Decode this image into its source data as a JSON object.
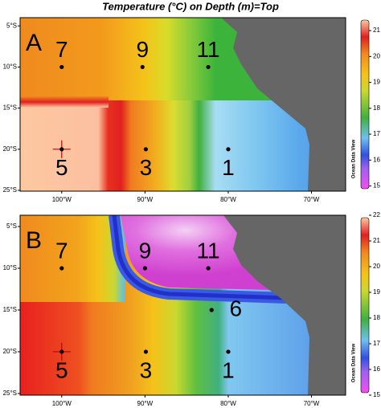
{
  "title": "Temperature (°C) on Depth (m)=Top",
  "watermark": "Ocean Data View",
  "xlim": [
    -105.0,
    -65.9
  ],
  "xticks": [
    {
      "value": -100,
      "label": "100°W"
    },
    {
      "value": -90,
      "label": "90°W"
    },
    {
      "value": -80,
      "label": "80°W"
    },
    {
      "value": -70,
      "label": "70°W"
    }
  ],
  "panels": [
    {
      "label": "A",
      "ylim": [
        -25.1,
        -4.0
      ],
      "yticks": [
        {
          "value": -5,
          "label": "5°S"
        },
        {
          "value": -10,
          "label": "10°S"
        },
        {
          "value": -15,
          "label": "15°S"
        },
        {
          "value": -20,
          "label": "20°S"
        },
        {
          "value": -25,
          "label": "25°S"
        }
      ],
      "colorbar": {
        "lim": [
          14.8,
          21.5
        ],
        "ticks": [
          15,
          16,
          17,
          18,
          19,
          20,
          21
        ]
      },
      "stations": [
        {
          "label": "7",
          "lon": -100,
          "lat": -10,
          "label_position": "above"
        },
        {
          "label": "9",
          "lon": -90.3,
          "lat": -10,
          "label_position": "above"
        },
        {
          "label": "11",
          "lon": -82.4,
          "lat": -10,
          "label_position": "above"
        },
        {
          "label": "5",
          "lon": -100,
          "lat": -20,
          "label_position": "below",
          "highlight": true
        },
        {
          "label": "3",
          "lon": -89.9,
          "lat": -20,
          "label_position": "below"
        },
        {
          "label": "1",
          "lon": -80,
          "lat": -20,
          "label_position": "below"
        }
      ]
    },
    {
      "label": "B",
      "ylim": [
        -25.2,
        -3.65
      ],
      "yticks": [
        {
          "value": -5,
          "label": "5°S"
        },
        {
          "value": -10,
          "label": "10°S"
        },
        {
          "value": -15,
          "label": "15°S"
        },
        {
          "value": -20,
          "label": "20°S"
        },
        {
          "value": -25,
          "label": "25°S"
        }
      ],
      "colorbar": {
        "lim": [
          15,
          22
        ],
        "ticks": [
          15,
          16,
          17,
          18,
          19,
          20,
          21,
          22
        ]
      },
      "stations": [
        {
          "label": "7",
          "lon": -100,
          "lat": -10,
          "label_position": "above"
        },
        {
          "label": "9",
          "lon": -90,
          "lat": -10,
          "label_position": "above"
        },
        {
          "label": "11",
          "lon": -82.4,
          "lat": -10,
          "label_position": "above"
        },
        {
          "label": "6",
          "lon": -82,
          "lat": -15,
          "label_position": "right"
        },
        {
          "label": "5",
          "lon": -100,
          "lat": -20,
          "label_position": "below",
          "highlight": true
        },
        {
          "label": "3",
          "lon": -89.9,
          "lat": -20,
          "label_position": "below"
        },
        {
          "label": "1",
          "lon": -80,
          "lat": -20,
          "label_position": "below"
        }
      ]
    }
  ]
}
